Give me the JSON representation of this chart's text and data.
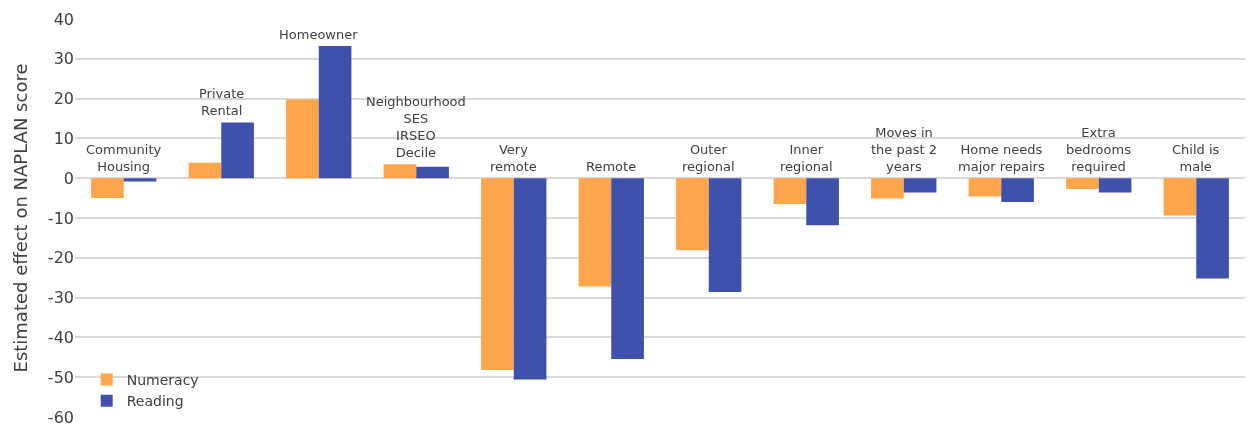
{
  "chart_data": {
    "type": "bar",
    "ylabel": "Estimated effect on NAPLAN score",
    "categories": [
      "Community\nHousing",
      "Private\nRental",
      "Homeowner",
      "Neighbourhood\nSES\nIRSEO\nDecile",
      "Very\nremote",
      "Remote",
      "Outer\nregional",
      "Inner\nregional",
      "Moves in\nthe past 2\nyears",
      "Home needs\nmajor repairs",
      "Extra\nbedrooms\nrequired",
      "Child is\nmale"
    ],
    "series": [
      {
        "name": "Numeracy",
        "color": "#ffa64d",
        "values": [
          -5.0,
          3.9,
          19.8,
          3.5,
          -48.2,
          -27.2,
          -18.1,
          -6.5,
          -5.1,
          -4.6,
          -2.7,
          -9.4
        ]
      },
      {
        "name": "Reading",
        "color": "#3f51aa",
        "values": [
          -0.8,
          14.0,
          33.2,
          2.9,
          -50.6,
          -45.4,
          -28.6,
          -11.8,
          -3.6,
          -6.0,
          -3.6,
          -25.2
        ]
      }
    ],
    "ylim": [
      -60,
      40
    ],
    "yticks": [
      -60,
      -50,
      -40,
      -30,
      -20,
      -10,
      0,
      10,
      20,
      30,
      40
    ],
    "grid": "y",
    "legend": "bottom left"
  }
}
